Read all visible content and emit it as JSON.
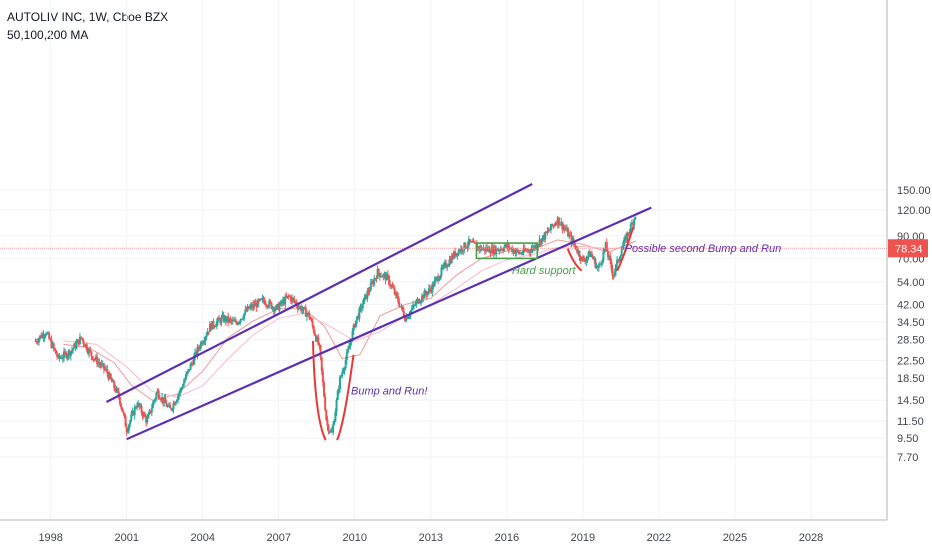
{
  "header": {
    "title": "AUTOLIV INC, 1W, Cboe BZX",
    "subtitle": "50,100,200 MA"
  },
  "colors": {
    "candle_up": "#26a69a",
    "candle_down": "#ef5350",
    "channel": "#5b2fb3",
    "bump_curves": "#e53935",
    "support_box": "#43a047",
    "price_line": "#ef9a9a",
    "price_tag": "#ef5350",
    "annotation_purple": "#5b2fb3",
    "annotation_green": "#43a047",
    "ma_lines": "#ef9a9a"
  },
  "chart_data": {
    "type": "candlestick",
    "scale": "log",
    "ylim": [
      7,
      160
    ],
    "xlim": [
      1996.0,
      2031.0
    ],
    "y_ticks": [
      {
        "value": 150,
        "label": "150.00"
      },
      {
        "value": 120,
        "label": "120.00"
      },
      {
        "value": 90,
        "label": "90.00"
      },
      {
        "value": 70,
        "label": "70.00"
      },
      {
        "value": 54,
        "label": "54.00"
      },
      {
        "value": 42,
        "label": "42.00"
      },
      {
        "value": 34.5,
        "label": "34.50"
      },
      {
        "value": 28.5,
        "label": "28.50"
      },
      {
        "value": 22.5,
        "label": "22.50"
      },
      {
        "value": 18.5,
        "label": "18.50"
      },
      {
        "value": 14.5,
        "label": "14.50"
      },
      {
        "value": 11.5,
        "label": "11.50"
      },
      {
        "value": 9.5,
        "label": "9.50"
      },
      {
        "value": 7.7,
        "label": "7.70"
      }
    ],
    "x_ticks": [
      {
        "value": 1998,
        "label": "1998"
      },
      {
        "value": 2001,
        "label": "2001"
      },
      {
        "value": 2004,
        "label": "2004"
      },
      {
        "value": 2007,
        "label": "2007"
      },
      {
        "value": 2010,
        "label": "2010"
      },
      {
        "value": 2013,
        "label": "2013"
      },
      {
        "value": 2016,
        "label": "2016"
      },
      {
        "value": 2019,
        "label": "2019"
      },
      {
        "value": 2022,
        "label": "2022"
      },
      {
        "value": 2025,
        "label": "2025"
      },
      {
        "value": 2028,
        "label": "2028"
      }
    ],
    "last_price": {
      "value": 78.34,
      "label": "78.34"
    },
    "price_path": [
      [
        1997.4,
        28
      ],
      [
        1997.8,
        31
      ],
      [
        1998.3,
        23
      ],
      [
        1998.8,
        25
      ],
      [
        1999.2,
        29
      ],
      [
        1999.6,
        24
      ],
      [
        2000.2,
        20
      ],
      [
        2000.7,
        15
      ],
      [
        2001.0,
        10.5
      ],
      [
        2001.4,
        14
      ],
      [
        2001.8,
        11.5
      ],
      [
        2002.2,
        16
      ],
      [
        2002.7,
        13
      ],
      [
        2003.1,
        16
      ],
      [
        2003.5,
        21
      ],
      [
        2003.9,
        27
      ],
      [
        2004.3,
        33
      ],
      [
        2004.8,
        36
      ],
      [
        2005.3,
        34
      ],
      [
        2005.8,
        40
      ],
      [
        2006.4,
        44
      ],
      [
        2006.9,
        40
      ],
      [
        2007.4,
        46
      ],
      [
        2007.8,
        41
      ],
      [
        2008.2,
        37
      ],
      [
        2008.6,
        26
      ],
      [
        2008.9,
        11
      ],
      [
        2009.1,
        10
      ],
      [
        2009.4,
        18
      ],
      [
        2009.7,
        24
      ],
      [
        2010.0,
        34
      ],
      [
        2010.4,
        45
      ],
      [
        2010.9,
        60
      ],
      [
        2011.3,
        56
      ],
      [
        2011.7,
        44
      ],
      [
        2012.0,
        36
      ],
      [
        2012.5,
        44
      ],
      [
        2013.0,
        50
      ],
      [
        2013.5,
        63
      ],
      [
        2014.0,
        75
      ],
      [
        2014.5,
        83
      ],
      [
        2015.0,
        78
      ],
      [
        2015.5,
        77
      ],
      [
        2016.0,
        80
      ],
      [
        2016.5,
        74
      ],
      [
        2017.0,
        78
      ],
      [
        2017.5,
        90
      ],
      [
        2018.0,
        108
      ],
      [
        2018.3,
        97
      ],
      [
        2018.7,
        80
      ],
      [
        2019.0,
        68
      ],
      [
        2019.3,
        74
      ],
      [
        2019.6,
        62
      ],
      [
        2019.9,
        80
      ],
      [
        2020.2,
        58
      ],
      [
        2020.5,
        76
      ],
      [
        2020.8,
        94
      ],
      [
        2021.0,
        107
      ],
      [
        2021.1,
        118
      ]
    ],
    "ma_path": [
      [
        1998.5,
        27
      ],
      [
        1999.5,
        26
      ],
      [
        2000.5,
        22
      ],
      [
        2001.2,
        17
      ],
      [
        2002.0,
        14.5
      ],
      [
        2003.0,
        15.5
      ],
      [
        2004.0,
        20
      ],
      [
        2005.0,
        29
      ],
      [
        2006.0,
        35
      ],
      [
        2007.0,
        40
      ],
      [
        2008.0,
        40
      ],
      [
        2008.8,
        33
      ],
      [
        2009.5,
        23
      ],
      [
        2010.2,
        24
      ],
      [
        2011.0,
        37
      ],
      [
        2012.0,
        42
      ],
      [
        2013.0,
        45
      ],
      [
        2014.0,
        58
      ],
      [
        2015.0,
        70
      ],
      [
        2016.0,
        76
      ],
      [
        2017.0,
        77
      ],
      [
        2018.0,
        86
      ],
      [
        2019.0,
        82
      ],
      [
        2020.0,
        75
      ],
      [
        2021.1,
        85
      ]
    ],
    "ma_path_2": [
      [
        1998.5,
        28
      ],
      [
        1999.8,
        27
      ],
      [
        2001.0,
        21
      ],
      [
        2002.0,
        16
      ],
      [
        2003.0,
        15
      ],
      [
        2004.0,
        17
      ],
      [
        2005.0,
        23
      ],
      [
        2006.0,
        30
      ],
      [
        2007.0,
        36
      ],
      [
        2008.0,
        38
      ],
      [
        2009.0,
        33
      ],
      [
        2010.0,
        28
      ],
      [
        2011.0,
        31
      ],
      [
        2012.0,
        37
      ],
      [
        2013.0,
        42
      ],
      [
        2014.0,
        50
      ],
      [
        2015.0,
        61
      ],
      [
        2016.0,
        69
      ],
      [
        2017.0,
        73
      ],
      [
        2018.0,
        79
      ],
      [
        2019.0,
        80
      ],
      [
        2020.0,
        78
      ],
      [
        2021.1,
        80
      ]
    ],
    "annotations": [
      {
        "text": "Possible second Bump and Run",
        "x": 2020.65,
        "y": 75,
        "color": "#5b2fb3"
      },
      {
        "text": "Hard support",
        "x": 2016.2,
        "y": 59,
        "color": "#43a047"
      },
      {
        "text": "Bump and Run!",
        "x": 2009.85,
        "y": 15.4,
        "color": "#5b2fb3"
      }
    ],
    "channel_upper": [
      [
        2000.2,
        14.2
      ],
      [
        2017.0,
        160
      ]
    ],
    "channel_lower": [
      [
        2001.0,
        9.4
      ],
      [
        2021.7,
        123
      ]
    ],
    "bump_curve_1": [
      [
        2008.35,
        28
      ],
      [
        2008.4,
        16
      ],
      [
        2008.55,
        11
      ],
      [
        2008.85,
        9.3
      ]
    ],
    "bump_curve_2": [
      [
        2009.3,
        9.3
      ],
      [
        2009.55,
        11
      ],
      [
        2009.75,
        16
      ],
      [
        2009.95,
        24
      ]
    ],
    "bump_curve_3": [
      [
        2018.4,
        78
      ],
      [
        2018.55,
        70
      ],
      [
        2018.75,
        64
      ],
      [
        2018.95,
        61
      ]
    ],
    "bump_curve_4": [
      [
        2020.35,
        61
      ],
      [
        2020.6,
        70
      ],
      [
        2020.85,
        88
      ],
      [
        2021.0,
        100
      ]
    ],
    "support_box": [
      [
        2014.8,
        70
      ],
      [
        2017.2,
        83
      ]
    ]
  }
}
